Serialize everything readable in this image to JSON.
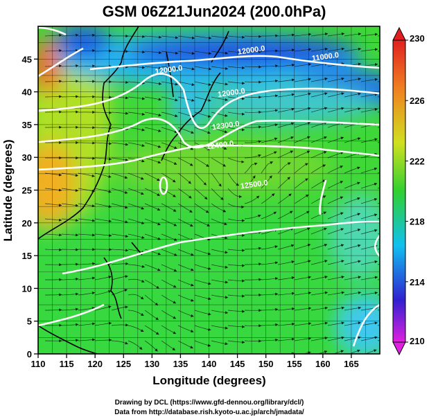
{
  "chart_data": {
    "type": "heatmap",
    "title": "GSM 06Z21Jun2024 (200.0hPa)",
    "xlabel": "Longitude (degrees)",
    "ylabel": "Latitude  (degrees)",
    "xlim": [
      110,
      170
    ],
    "ylim": [
      0,
      50
    ],
    "xticks": [
      "110",
      "115",
      "120",
      "125",
      "130",
      "135",
      "140",
      "145",
      "150",
      "155",
      "160",
      "165"
    ],
    "yticks": [
      "0",
      "5",
      "10",
      "15",
      "20",
      "25",
      "30",
      "35",
      "40",
      "45"
    ],
    "grid": true,
    "colorbar": {
      "min": 210,
      "max": 230,
      "labels": [
        "230",
        "226",
        "222",
        "218",
        "214",
        "210"
      ],
      "colors": [
        "#e020e0",
        "#2020d0",
        "#10c0f0",
        "#30d030",
        "#e0e020",
        "#f08020",
        "#e02020"
      ]
    },
    "height_contours": [
      {
        "label": "11000.0",
        "lon": 160.5,
        "lat": 45
      },
      {
        "label": "12000.0",
        "lon": 147.5,
        "lat": 46
      },
      {
        "label": "12000.0",
        "lon": 144,
        "lat": 39.5
      },
      {
        "label": "12000.0",
        "lon": 133,
        "lat": 43
      },
      {
        "label": "12300.0",
        "lon": 143,
        "lat": 34.5
      },
      {
        "label": "12400.0",
        "lon": 142,
        "lat": 31.5
      },
      {
        "label": "12500.0",
        "lon": 148,
        "lat": 25.5
      }
    ],
    "fields": [
      "temperature (K)",
      "geopotential height (m)",
      "wind streamlines"
    ]
  },
  "credits": {
    "line1": "Drawing by DCL (https://www.gfd-dennou.org/library/dcl/)",
    "line2": "Data from http://database.rish.kyoto-u.ac.jp/arch/jmadata/"
  }
}
